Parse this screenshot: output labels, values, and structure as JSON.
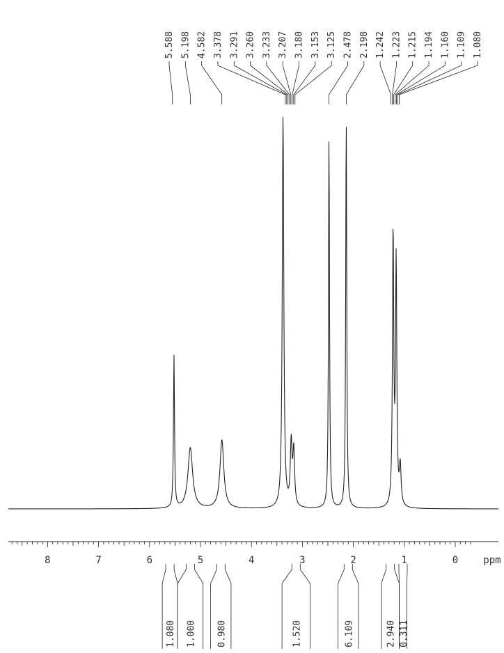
{
  "chart_data": {
    "type": "line",
    "title": "",
    "xlabel": "ppm",
    "ylabel": "",
    "xlim": [
      8.8,
      -0.3
    ],
    "x_reversed": true,
    "x_ticks": [
      "8",
      "7",
      "6",
      "5",
      "4",
      "3",
      "2",
      "1",
      "0"
    ],
    "x_unit": "ppm",
    "grid": false,
    "legend": "none",
    "peak_labels": [
      "5.588",
      "5.198",
      "4.582",
      "3.378",
      "3.291",
      "3.260",
      "3.233",
      "3.207",
      "3.180",
      "3.153",
      "3.125",
      "2.478",
      "2.198",
      "1.242",
      "1.223",
      "1.215",
      "1.194",
      "1.160",
      "1.109",
      "1.080"
    ],
    "peak_groups": [
      {
        "members": [
          0
        ],
        "at": 5.55
      },
      {
        "members": [
          1
        ],
        "at": 5.2
      },
      {
        "members": [
          2
        ],
        "at": 4.58
      },
      {
        "members": [
          3,
          4,
          5,
          6,
          7,
          8,
          9,
          10
        ],
        "at": 3.24
      },
      {
        "members": [
          11
        ],
        "at": 2.48
      },
      {
        "members": [
          12
        ],
        "at": 2.14
      },
      {
        "members": [
          13,
          14,
          15,
          16,
          17,
          18,
          19
        ],
        "at": 1.18
      }
    ],
    "peaks": [
      {
        "ppm": 5.52,
        "height": 0.39,
        "width": 0.012
      },
      {
        "ppm": 5.2,
        "height": 0.155,
        "width": 0.055
      },
      {
        "ppm": 4.58,
        "height": 0.175,
        "width": 0.045
      },
      {
        "ppm": 3.38,
        "height": 1.0,
        "width": 0.018
      },
      {
        "ppm": 3.22,
        "height": 0.16,
        "width": 0.02
      },
      {
        "ppm": 3.17,
        "height": 0.14,
        "width": 0.02
      },
      {
        "ppm": 2.478,
        "height": 0.95,
        "width": 0.012
      },
      {
        "ppm": 2.14,
        "height": 1.0,
        "width": 0.012
      },
      {
        "ppm": 1.22,
        "height": 0.7,
        "width": 0.015
      },
      {
        "ppm": 1.16,
        "height": 0.62,
        "width": 0.015
      },
      {
        "ppm": 1.08,
        "height": 0.1,
        "width": 0.02
      }
    ],
    "integrals": [
      {
        "label": "1.080",
        "from": 5.75,
        "to": 5.45
      },
      {
        "label": "1.000",
        "from": 5.45,
        "to": 4.95
      },
      {
        "label": "0.980",
        "from": 4.8,
        "to": 4.4
      },
      {
        "label": "1.520",
        "from": 3.4,
        "to": 2.85
      },
      {
        "label": "6.109",
        "from": 2.3,
        "to": 1.9
      },
      {
        "label": "2.940",
        "from": 1.45,
        "to": 1.1
      },
      {
        "label": "0.311",
        "from": 1.1,
        "to": 0.95
      }
    ]
  }
}
